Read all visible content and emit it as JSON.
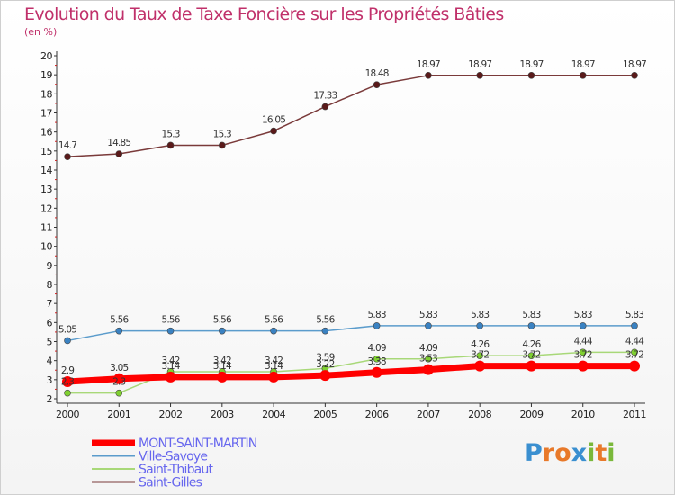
{
  "title": "Evolution du Taux de Taxe Foncière sur les Propriétés Bâties",
  "unit_label": "(en %)",
  "logo": {
    "text": "Proxiti",
    "letters": [
      "P",
      "r",
      "o",
      "x",
      "i",
      "t",
      "i"
    ],
    "colors": [
      "#3a8fd0",
      "#e8792a",
      "#e8792a",
      "#3a8fd0",
      "#7ab83a",
      "#e8792a",
      "#7ab83a"
    ]
  },
  "chart_data": {
    "type": "line",
    "title": "Evolution du Taux de Taxe Foncière sur les Propriétés Bâties",
    "ylabel": "(en %)",
    "ylim": [
      2,
      20
    ],
    "yticks": [
      2,
      3,
      4,
      5,
      6,
      7,
      8,
      9,
      10,
      11,
      12,
      13,
      14,
      15,
      16,
      17,
      18,
      19,
      20
    ],
    "x": [
      "2000",
      "2001",
      "2002",
      "2003",
      "2004",
      "2005",
      "2006",
      "2007",
      "2008",
      "2009",
      "2010",
      "2011"
    ],
    "grid": false,
    "legend_position": "bottom-left",
    "series": [
      {
        "name": "Saint-Gilles",
        "color": "#7a3a3a",
        "marker": "#5a1a1a",
        "values": [
          14.7,
          14.85,
          15.3,
          15.3,
          16.05,
          17.33,
          18.48,
          18.97,
          18.97,
          18.97,
          18.97,
          18.97
        ],
        "labels": [
          "14.7",
          "14.85",
          "15.3",
          "15.3",
          "16.05",
          "17.33",
          "18.48",
          "18.97",
          "18.97",
          "18.97",
          "18.97",
          "18.97"
        ]
      },
      {
        "name": "Ville-Savoye",
        "color": "#5b9ccc",
        "marker": "#3a82c2",
        "values": [
          5.05,
          5.56,
          5.56,
          5.56,
          5.56,
          5.56,
          5.83,
          5.83,
          5.83,
          5.83,
          5.83,
          5.83
        ],
        "labels": [
          "5.05",
          "5.56",
          "5.56",
          "5.56",
          "5.56",
          "5.56",
          "5.83",
          "5.83",
          "5.83",
          "5.83",
          "5.83",
          "5.83"
        ]
      },
      {
        "name": "Saint-Thibaut",
        "color": "#a8d878",
        "marker": "#7fd030",
        "values": [
          2.3,
          2.3,
          3.42,
          3.42,
          3.42,
          3.59,
          4.09,
          4.09,
          4.26,
          4.26,
          4.44,
          4.44
        ],
        "labels": [
          "2.3",
          "2.3",
          "3.42",
          "3.42",
          "3.42",
          "3.59",
          "4.09",
          "4.09",
          "4.26",
          "4.26",
          "4.44",
          "4.44"
        ]
      },
      {
        "name": "MONT-SAINT-MARTIN",
        "color": "#ff0000",
        "marker": "#ff0000",
        "values": [
          2.9,
          3.05,
          3.14,
          3.14,
          3.14,
          3.22,
          3.38,
          3.53,
          3.72,
          3.72,
          3.72,
          3.72
        ],
        "labels": [
          "2.9",
          "3.05",
          "3.14",
          "3.14",
          "3.14",
          "3.22",
          "3.38",
          "3.53",
          "3.72",
          "3.72",
          "3.72",
          "3.72"
        ]
      }
    ],
    "legend": [
      {
        "name": "MONT-SAINT-MARTIN",
        "color": "#ff0000",
        "text_color": "#6666ee"
      },
      {
        "name": "Ville-Savoye",
        "color": "#5b9ccc",
        "text_color": "#6666ee"
      },
      {
        "name": "Saint-Thibaut",
        "color": "#a8d878",
        "text_color": "#6666ee"
      },
      {
        "name": "Saint-Gilles",
        "color": "#7a3a3a",
        "text_color": "#6666ee"
      }
    ]
  }
}
